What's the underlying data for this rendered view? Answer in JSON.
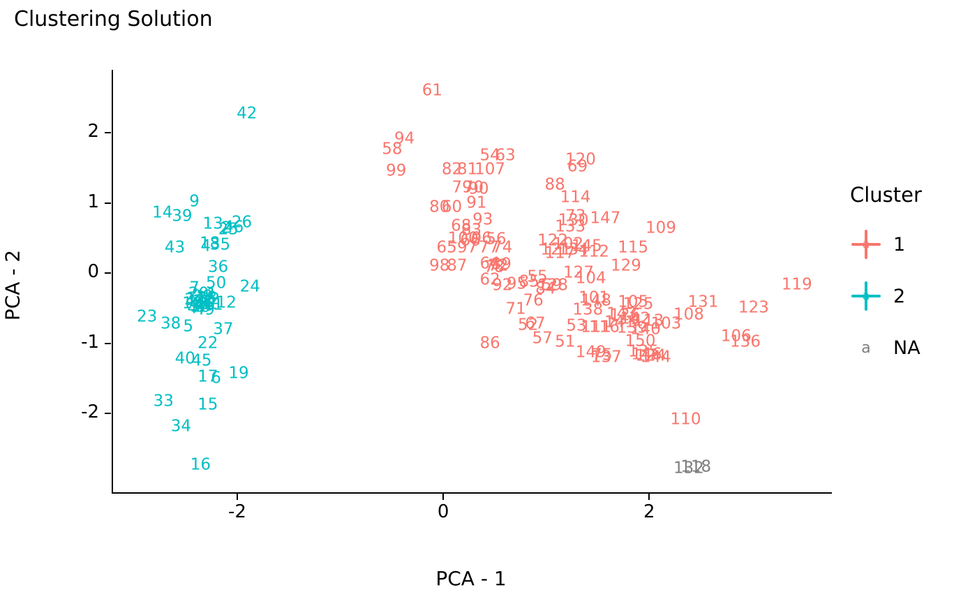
{
  "title": "Clustering Solution",
  "axes": {
    "x": {
      "label": "PCA - 1",
      "tick_labels": [
        "-2",
        "0",
        "2"
      ],
      "ticks": [
        -2,
        0,
        2
      ]
    },
    "y": {
      "label": "PCA - 2",
      "tick_labels": [
        "2",
        "1",
        "0",
        "-1",
        "-2"
      ],
      "ticks": [
        2,
        1,
        0,
        -1,
        -2
      ]
    }
  },
  "legend": {
    "title": "Cluster",
    "items": [
      {
        "label": "1",
        "color": "#F8766D",
        "key_glyph": "a",
        "key_type": "cross-a"
      },
      {
        "label": "2",
        "color": "#00BFC4",
        "key_glyph": "a",
        "key_type": "cross-a"
      },
      {
        "label": "NA",
        "color": "#7F7F7F",
        "key_glyph": "a",
        "key_type": "plain-a"
      }
    ]
  },
  "colors": {
    "cluster1": "#F8766D",
    "cluster2": "#00BFC4",
    "na": "#7F7F7F",
    "axis": "#000000",
    "background": "#FFFFFF"
  },
  "chart_data": {
    "type": "scatter",
    "point_geom": "text-label",
    "title": "Clustering Solution",
    "xlabel": "PCA - 1",
    "ylabel": "PCA - 2",
    "xlim": [
      -3.22,
      3.76
    ],
    "ylim": [
      -3.12,
      2.9
    ],
    "x_ticks": [
      -2,
      0,
      2
    ],
    "y_ticks": [
      -2,
      -1,
      0,
      1,
      2
    ],
    "grid": false,
    "legend_position": "right",
    "point_columns": [
      "label",
      "x",
      "y"
    ],
    "series": [
      {
        "name": "1",
        "color": "#F8766D",
        "points": [
          [
            "51",
            1.17,
            -0.98
          ],
          [
            "52",
            0.81,
            -0.74
          ],
          [
            "53",
            1.28,
            -0.75
          ],
          [
            "54",
            0.44,
            1.68
          ],
          [
            "55",
            0.9,
            -0.05
          ],
          [
            "56",
            0.5,
            0.48
          ],
          [
            "57",
            0.95,
            -0.93
          ],
          [
            "58",
            -0.51,
            1.77
          ],
          [
            "59",
            1.04,
            -0.17
          ],
          [
            "60",
            0.07,
            0.94
          ],
          [
            "61",
            -0.12,
            2.6
          ],
          [
            "62",
            0.44,
            -0.09
          ],
          [
            "63",
            0.59,
            1.68
          ],
          [
            "64",
            0.44,
            0.13
          ],
          [
            "65",
            0.02,
            0.36
          ],
          [
            "66",
            0.25,
            0.46
          ],
          [
            "67",
            0.88,
            -0.72
          ],
          [
            "68",
            0.16,
            0.67
          ],
          [
            "69",
            1.29,
            1.52
          ],
          [
            "70",
            0.28,
            1.22
          ],
          [
            "71",
            0.69,
            -0.51
          ],
          [
            "72",
            0.52,
            0.1
          ],
          [
            "73",
            1.27,
            0.81
          ],
          [
            "74",
            0.56,
            0.36
          ],
          [
            "75",
            1.53,
            -1.17
          ],
          [
            "76",
            0.86,
            -0.39
          ],
          [
            "77",
            0.43,
            0.36
          ],
          [
            "78",
            0.48,
            0.08
          ],
          [
            "79",
            0.17,
            1.22
          ],
          [
            "80",
            -0.05,
            0.94
          ],
          [
            "81",
            0.22,
            1.48
          ],
          [
            "82",
            0.07,
            1.48
          ],
          [
            "83",
            0.26,
            0.61
          ],
          [
            "84",
            0.98,
            -0.22
          ],
          [
            "85",
            0.82,
            -0.12
          ],
          [
            "86",
            0.44,
            -1.0
          ],
          [
            "87",
            0.12,
            0.1
          ],
          [
            "88",
            1.07,
            1.26
          ],
          [
            "89",
            0.55,
            0.12
          ],
          [
            "90",
            0.33,
            1.2
          ],
          [
            "91",
            0.31,
            1.0
          ],
          [
            "92",
            0.56,
            -0.17
          ],
          [
            "93",
            0.37,
            0.76
          ],
          [
            "94",
            -0.39,
            1.92
          ],
          [
            "95",
            0.7,
            -0.15
          ],
          [
            "96",
            0.36,
            0.49
          ],
          [
            "97",
            0.22,
            0.36
          ],
          [
            "98",
            -0.05,
            0.1
          ],
          [
            "99",
            -0.47,
            1.46
          ],
          [
            "100",
            0.18,
            0.49
          ],
          [
            "101",
            1.45,
            -0.35
          ],
          [
            "102",
            1.2,
            0.41
          ],
          [
            "103",
            2.15,
            -0.72
          ],
          [
            "104",
            1.42,
            -0.07
          ],
          [
            "105",
            1.83,
            -0.41
          ],
          [
            "106",
            2.83,
            -0.9
          ],
          [
            "107",
            0.44,
            1.48
          ],
          [
            "108",
            2.37,
            -0.59
          ],
          [
            "109",
            2.1,
            0.64
          ],
          [
            "110",
            2.34,
            -2.08
          ],
          [
            "111",
            1.47,
            -0.77
          ],
          [
            "112",
            1.45,
            0.3
          ],
          [
            "113",
            1.98,
            -0.68
          ],
          [
            "114",
            1.27,
            1.08
          ],
          [
            "115",
            1.83,
            0.36
          ],
          [
            "116",
            1.55,
            -0.77
          ],
          [
            "117",
            1.12,
            0.28
          ],
          [
            "119",
            3.42,
            -0.16
          ],
          [
            "120",
            1.32,
            1.62
          ],
          [
            "121",
            1.08,
            0.33
          ],
          [
            "122",
            1.05,
            0.46
          ],
          [
            "123",
            3.0,
            -0.49
          ],
          [
            "124",
            2.0,
            -1.18
          ],
          [
            "125",
            1.88,
            -0.44
          ],
          [
            "126",
            1.75,
            -0.6
          ],
          [
            "127",
            1.3,
            0.0
          ],
          [
            "128",
            1.05,
            -0.17
          ],
          [
            "129",
            1.76,
            0.1
          ],
          [
            "130",
            1.25,
            0.75
          ],
          [
            "131",
            2.51,
            -0.41
          ],
          [
            "133",
            1.22,
            0.66
          ],
          [
            "134",
            1.25,
            0.33
          ],
          [
            "135",
            1.93,
            -1.12
          ],
          [
            "136",
            2.92,
            -0.98
          ],
          [
            "137",
            1.57,
            -1.2
          ],
          [
            "138",
            1.39,
            -0.52
          ],
          [
            "139",
            1.82,
            -0.78
          ],
          [
            "140",
            1.95,
            -0.8
          ],
          [
            "141",
            1.7,
            -0.7
          ],
          [
            "142",
            1.85,
            -0.65
          ],
          [
            "143",
            1.72,
            -0.58
          ],
          [
            "144",
            2.05,
            -1.2
          ],
          [
            "145",
            1.38,
            0.38
          ],
          [
            "146",
            1.96,
            -1.16
          ],
          [
            "147",
            1.56,
            0.78
          ],
          [
            "148",
            1.47,
            -0.39
          ],
          [
            "149",
            1.42,
            -1.13
          ],
          [
            "150",
            1.9,
            -0.97
          ]
        ]
      },
      {
        "name": "2",
        "color": "#00BFC4",
        "points": [
          [
            "1",
            -2.26,
            -0.3
          ],
          [
            "2",
            -2.12,
            0.64
          ],
          [
            "3",
            -2.48,
            -0.38
          ],
          [
            "4",
            -2.32,
            0.38
          ],
          [
            "5",
            -2.49,
            -0.76
          ],
          [
            "6",
            -2.22,
            -1.5
          ],
          [
            "7",
            -2.43,
            -0.21
          ],
          [
            "8",
            -2.34,
            -0.44
          ],
          [
            "9",
            -2.43,
            1.02
          ],
          [
            "10",
            -2.45,
            -0.43
          ],
          [
            "11",
            -2.41,
            -0.36
          ],
          [
            "12",
            -2.12,
            -0.42
          ],
          [
            "13",
            -2.25,
            0.7
          ],
          [
            "14",
            -2.74,
            0.86
          ],
          [
            "15",
            -2.3,
            -1.88
          ],
          [
            "16",
            -2.37,
            -2.73
          ],
          [
            "17",
            -2.3,
            -1.48
          ],
          [
            "18",
            -2.28,
            0.42
          ],
          [
            "19",
            -2.0,
            -1.43
          ],
          [
            "20",
            -2.39,
            -0.29
          ],
          [
            "21",
            -2.3,
            -0.44
          ],
          [
            "22",
            -2.3,
            -1.0
          ],
          [
            "23",
            -2.89,
            -0.62
          ],
          [
            "24",
            -1.89,
            -0.19
          ],
          [
            "25",
            -2.1,
            0.62
          ],
          [
            "26",
            -1.97,
            0.72
          ],
          [
            "27",
            -2.36,
            -0.41
          ],
          [
            "28",
            -2.31,
            -0.35
          ],
          [
            "29",
            -2.35,
            -0.33
          ],
          [
            "30",
            -2.37,
            -0.48
          ],
          [
            "31",
            -2.34,
            -0.4
          ],
          [
            "32",
            -2.28,
            -0.37
          ],
          [
            "33",
            -2.73,
            -1.83
          ],
          [
            "34",
            -2.56,
            -2.18
          ],
          [
            "35",
            -2.18,
            0.4
          ],
          [
            "36",
            -2.2,
            0.08
          ],
          [
            "37",
            -2.15,
            -0.8
          ],
          [
            "38",
            -2.66,
            -0.72
          ],
          [
            "39",
            -2.55,
            0.81
          ],
          [
            "40",
            -2.52,
            -1.22
          ],
          [
            "41",
            -2.25,
            -0.45
          ],
          [
            "42",
            -1.92,
            2.27
          ],
          [
            "43",
            -2.62,
            0.36
          ],
          [
            "44",
            -2.42,
            -0.4
          ],
          [
            "45",
            -2.36,
            -1.25
          ],
          [
            "46",
            -2.05,
            0.65
          ],
          [
            "47",
            -2.4,
            -0.5
          ],
          [
            "48",
            -2.38,
            -0.44
          ],
          [
            "49",
            -2.33,
            -0.52
          ],
          [
            "50",
            -2.22,
            -0.14
          ]
        ]
      },
      {
        "name": "NA",
        "color": "#7F7F7F",
        "points": [
          [
            "118",
            2.44,
            -2.76
          ],
          [
            "132",
            2.37,
            -2.78
          ]
        ]
      }
    ]
  }
}
